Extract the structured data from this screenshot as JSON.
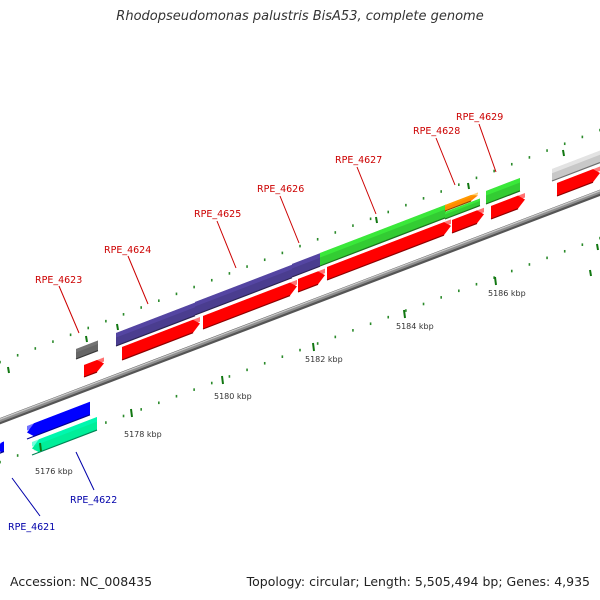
{
  "title": "Rhodopseudomonas palustris BisA53, complete genome",
  "footer": {
    "accession": "Accession: NC_008435",
    "topology": "Topology: circular; Length: 5,505,494 bp; Genes: 4,935"
  },
  "colors": {
    "backbone": "#8f8f8f",
    "forward_label": "#cc0000",
    "reverse_label": "#0000aa",
    "cds_red": "#ff0000",
    "purple": "#4a3d8f",
    "green": "#33cc33",
    "orange": "#ff8800",
    "gray_dark": "#666666",
    "gray_light": "#c8c8c8",
    "blue": "#0000ff",
    "teal": "#00ee99",
    "tick_green": "#117711"
  },
  "scale": {
    "unit": "kbp",
    "major_ticks": [
      {
        "label": "5176 kbp"
      },
      {
        "label": "5178 kbp"
      },
      {
        "label": "5180 kbp"
      },
      {
        "label": "5182 kbp"
      },
      {
        "label": "5184 kbp"
      },
      {
        "label": "5186 kbp"
      }
    ]
  },
  "genes": [
    {
      "label": "RPE_4621",
      "strand": "reverse"
    },
    {
      "label": "RPE_4622",
      "strand": "reverse"
    },
    {
      "label": "RPE_4623",
      "strand": "forward"
    },
    {
      "label": "RPE_4624",
      "strand": "forward"
    },
    {
      "label": "RPE_4625",
      "strand": "forward"
    },
    {
      "label": "RPE_4626",
      "strand": "forward"
    },
    {
      "label": "RPE_4627",
      "strand": "forward"
    },
    {
      "label": "RPE_4628",
      "strand": "forward"
    },
    {
      "label": "RPE_4629",
      "strand": "forward"
    }
  ]
}
